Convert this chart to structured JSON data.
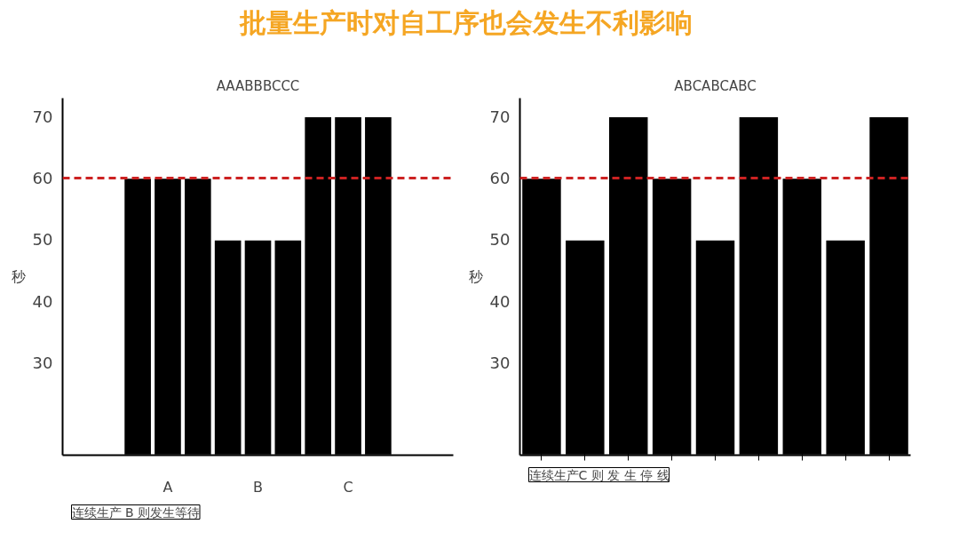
{
  "chart_data": [
    {
      "type": "bar",
      "title": "批量生产时对自工序也会发生不利影响",
      "subtitle": "AAABBBCCC",
      "ylabel": "秒",
      "categories": [
        null,
        "A",
        null,
        null,
        "B",
        null,
        null,
        "C",
        null
      ],
      "series": [
        {
          "color": "#000000",
          "values": [
            60,
            60,
            60,
            50,
            50,
            50,
            70,
            70,
            70
          ]
        }
      ],
      "ylim": [
        15,
        73
      ],
      "yticks": [
        30,
        40,
        50,
        60,
        70
      ],
      "grid": false,
      "ref_lines": [
        {
          "axis": "y",
          "value": 60,
          "color": "#cc2222",
          "line_style": "dashed"
        }
      ],
      "annotations": [
        "连续生产 B 则发生等待"
      ]
    },
    {
      "type": "bar",
      "subtitle": "ABCABCABC",
      "ylabel": "秒",
      "categories": [
        null,
        null,
        null,
        null,
        null,
        null,
        null,
        null,
        null
      ],
      "series": [
        {
          "color": "#000000",
          "values": [
            60,
            50,
            70,
            60,
            50,
            70,
            60,
            50,
            70
          ]
        }
      ],
      "ylim": [
        15,
        73
      ],
      "yticks": [
        30,
        40,
        50,
        60,
        70
      ],
      "grid": false,
      "ref_lines": [
        {
          "axis": "y",
          "value": 60,
          "color": "#cc2222",
          "line_style": "dashed"
        }
      ],
      "annotations": [
        "连续生产C 则 发 生 停 线"
      ]
    }
  ]
}
